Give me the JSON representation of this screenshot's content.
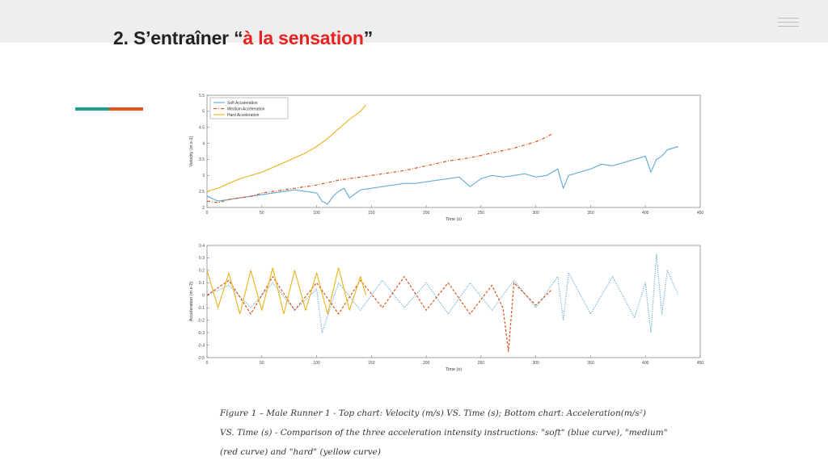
{
  "header": {
    "title_prefix": "2. S’entraîner “",
    "title_highlight": "à la sensation",
    "title_suffix": "”",
    "menu_icon": "hamburger-icon"
  },
  "colors": {
    "accent_teal": "#1f9e8e",
    "accent_orange": "#e2571c",
    "highlight_red": "#e8231f",
    "soft": "#6aaed6",
    "medium": "#d9541e",
    "hard": "#e9b82a"
  },
  "chart_data": [
    {
      "type": "line",
      "title": "",
      "xlabel": "Time (s)",
      "ylabel": "Velocity (m.s-1)",
      "xlim": [
        0,
        450
      ],
      "ylim": [
        2,
        5.5
      ],
      "xticks": [
        0,
        50,
        100,
        150,
        200,
        250,
        300,
        350,
        400,
        450
      ],
      "yticks": [
        2,
        2.5,
        3,
        3.5,
        4,
        4.5,
        5,
        5.5
      ],
      "grid": false,
      "legend_position": "top-left",
      "series": [
        {
          "name": "Soft Acceleration",
          "color": "#6aaed6",
          "style": "solid",
          "x": [
            0,
            10,
            20,
            30,
            40,
            50,
            60,
            70,
            80,
            90,
            100,
            105,
            110,
            115,
            120,
            125,
            130,
            140,
            150,
            160,
            170,
            180,
            190,
            200,
            210,
            220,
            230,
            240,
            250,
            260,
            270,
            280,
            290,
            300,
            310,
            320,
            325,
            330,
            340,
            350,
            360,
            370,
            380,
            390,
            400,
            405,
            410,
            415,
            420,
            430
          ],
          "y": [
            2.35,
            2.2,
            2.25,
            2.3,
            2.35,
            2.4,
            2.45,
            2.5,
            2.55,
            2.5,
            2.45,
            2.2,
            2.1,
            2.35,
            2.5,
            2.6,
            2.3,
            2.55,
            2.6,
            2.65,
            2.7,
            2.75,
            2.75,
            2.8,
            2.85,
            2.9,
            2.95,
            2.65,
            2.9,
            3.0,
            2.95,
            3.0,
            3.05,
            2.95,
            3.0,
            3.2,
            2.6,
            3.0,
            3.1,
            3.2,
            3.35,
            3.3,
            3.4,
            3.5,
            3.6,
            3.1,
            3.5,
            3.6,
            3.8,
            3.9
          ]
        },
        {
          "name": "Medium Acceleration",
          "color": "#d9541e",
          "style": "dashdot",
          "x": [
            0,
            10,
            20,
            30,
            40,
            50,
            60,
            80,
            100,
            120,
            140,
            160,
            180,
            200,
            220,
            240,
            260,
            280,
            300,
            310,
            315
          ],
          "y": [
            2.2,
            2.15,
            2.25,
            2.3,
            2.35,
            2.45,
            2.5,
            2.6,
            2.7,
            2.85,
            2.95,
            3.05,
            3.15,
            3.3,
            3.45,
            3.55,
            3.7,
            3.85,
            4.05,
            4.2,
            4.3
          ]
        },
        {
          "name": "Hard Acceleration",
          "color": "#e9b82a",
          "style": "solid",
          "x": [
            0,
            10,
            20,
            30,
            40,
            50,
            60,
            70,
            80,
            90,
            100,
            110,
            120,
            130,
            140,
            145
          ],
          "y": [
            2.5,
            2.6,
            2.75,
            2.9,
            3.0,
            3.1,
            3.25,
            3.4,
            3.55,
            3.7,
            3.9,
            4.15,
            4.45,
            4.75,
            5.0,
            5.2
          ]
        }
      ]
    },
    {
      "type": "line",
      "title": "",
      "xlabel": "Time (s)",
      "ylabel": "Acceleration (m.s-2)",
      "xlim": [
        0,
        450
      ],
      "ylim": [
        -0.5,
        0.4
      ],
      "xticks": [
        0,
        50,
        100,
        150,
        200,
        250,
        300,
        350,
        400,
        450
      ],
      "yticks": [
        -0.5,
        -0.4,
        -0.3,
        -0.2,
        -0.1,
        0,
        0.1,
        0.2,
        0.3,
        0.4
      ],
      "grid": false,
      "series": [
        {
          "name": "Soft Acceleration",
          "color": "#6aaed6",
          "style": "dotted",
          "x": [
            0,
            20,
            40,
            60,
            80,
            100,
            105,
            120,
            140,
            160,
            180,
            200,
            220,
            240,
            260,
            280,
            300,
            320,
            325,
            330,
            350,
            370,
            390,
            400,
            405,
            410,
            415,
            420,
            430
          ],
          "y": [
            0.0,
            0.08,
            -0.1,
            0.1,
            -0.12,
            0.05,
            -0.3,
            0.1,
            -0.12,
            0.12,
            -0.1,
            0.1,
            -0.15,
            0.1,
            -0.12,
            0.12,
            -0.1,
            0.15,
            -0.2,
            0.18,
            -0.15,
            0.15,
            -0.18,
            0.1,
            -0.3,
            0.33,
            -0.15,
            0.2,
            0.0
          ]
        },
        {
          "name": "Medium Acceleration",
          "color": "#d9541e",
          "style": "dashed",
          "x": [
            0,
            20,
            40,
            60,
            80,
            100,
            120,
            140,
            160,
            180,
            200,
            220,
            240,
            260,
            270,
            275,
            280,
            300,
            315
          ],
          "y": [
            0.0,
            0.12,
            -0.15,
            0.15,
            -0.12,
            0.1,
            -0.15,
            0.12,
            -0.1,
            0.15,
            -0.12,
            0.1,
            -0.15,
            0.08,
            -0.1,
            -0.45,
            0.1,
            -0.08,
            0.05
          ]
        },
        {
          "name": "Hard Acceleration",
          "color": "#e9b82a",
          "style": "solid",
          "x": [
            0,
            10,
            20,
            30,
            40,
            50,
            60,
            70,
            80,
            90,
            100,
            110,
            120,
            130,
            140,
            145
          ],
          "y": [
            0.2,
            -0.1,
            0.18,
            -0.15,
            0.2,
            -0.12,
            0.22,
            -0.15,
            0.2,
            -0.12,
            0.18,
            -0.15,
            0.22,
            -0.12,
            0.15,
            0.0
          ]
        }
      ]
    }
  ],
  "caption": {
    "line1": "Figure 1 – Male Runner 1 - Top chart: Velocity (m/s) VS. Time (s); Bottom chart: Acceleration(m/s²)",
    "line2": "VS. Time (s) - Comparison of the three acceleration intensity instructions: \"soft\" (blue curve), \"medium\"",
    "line3": "(red curve) and \"hard\" (yellow curve)"
  }
}
